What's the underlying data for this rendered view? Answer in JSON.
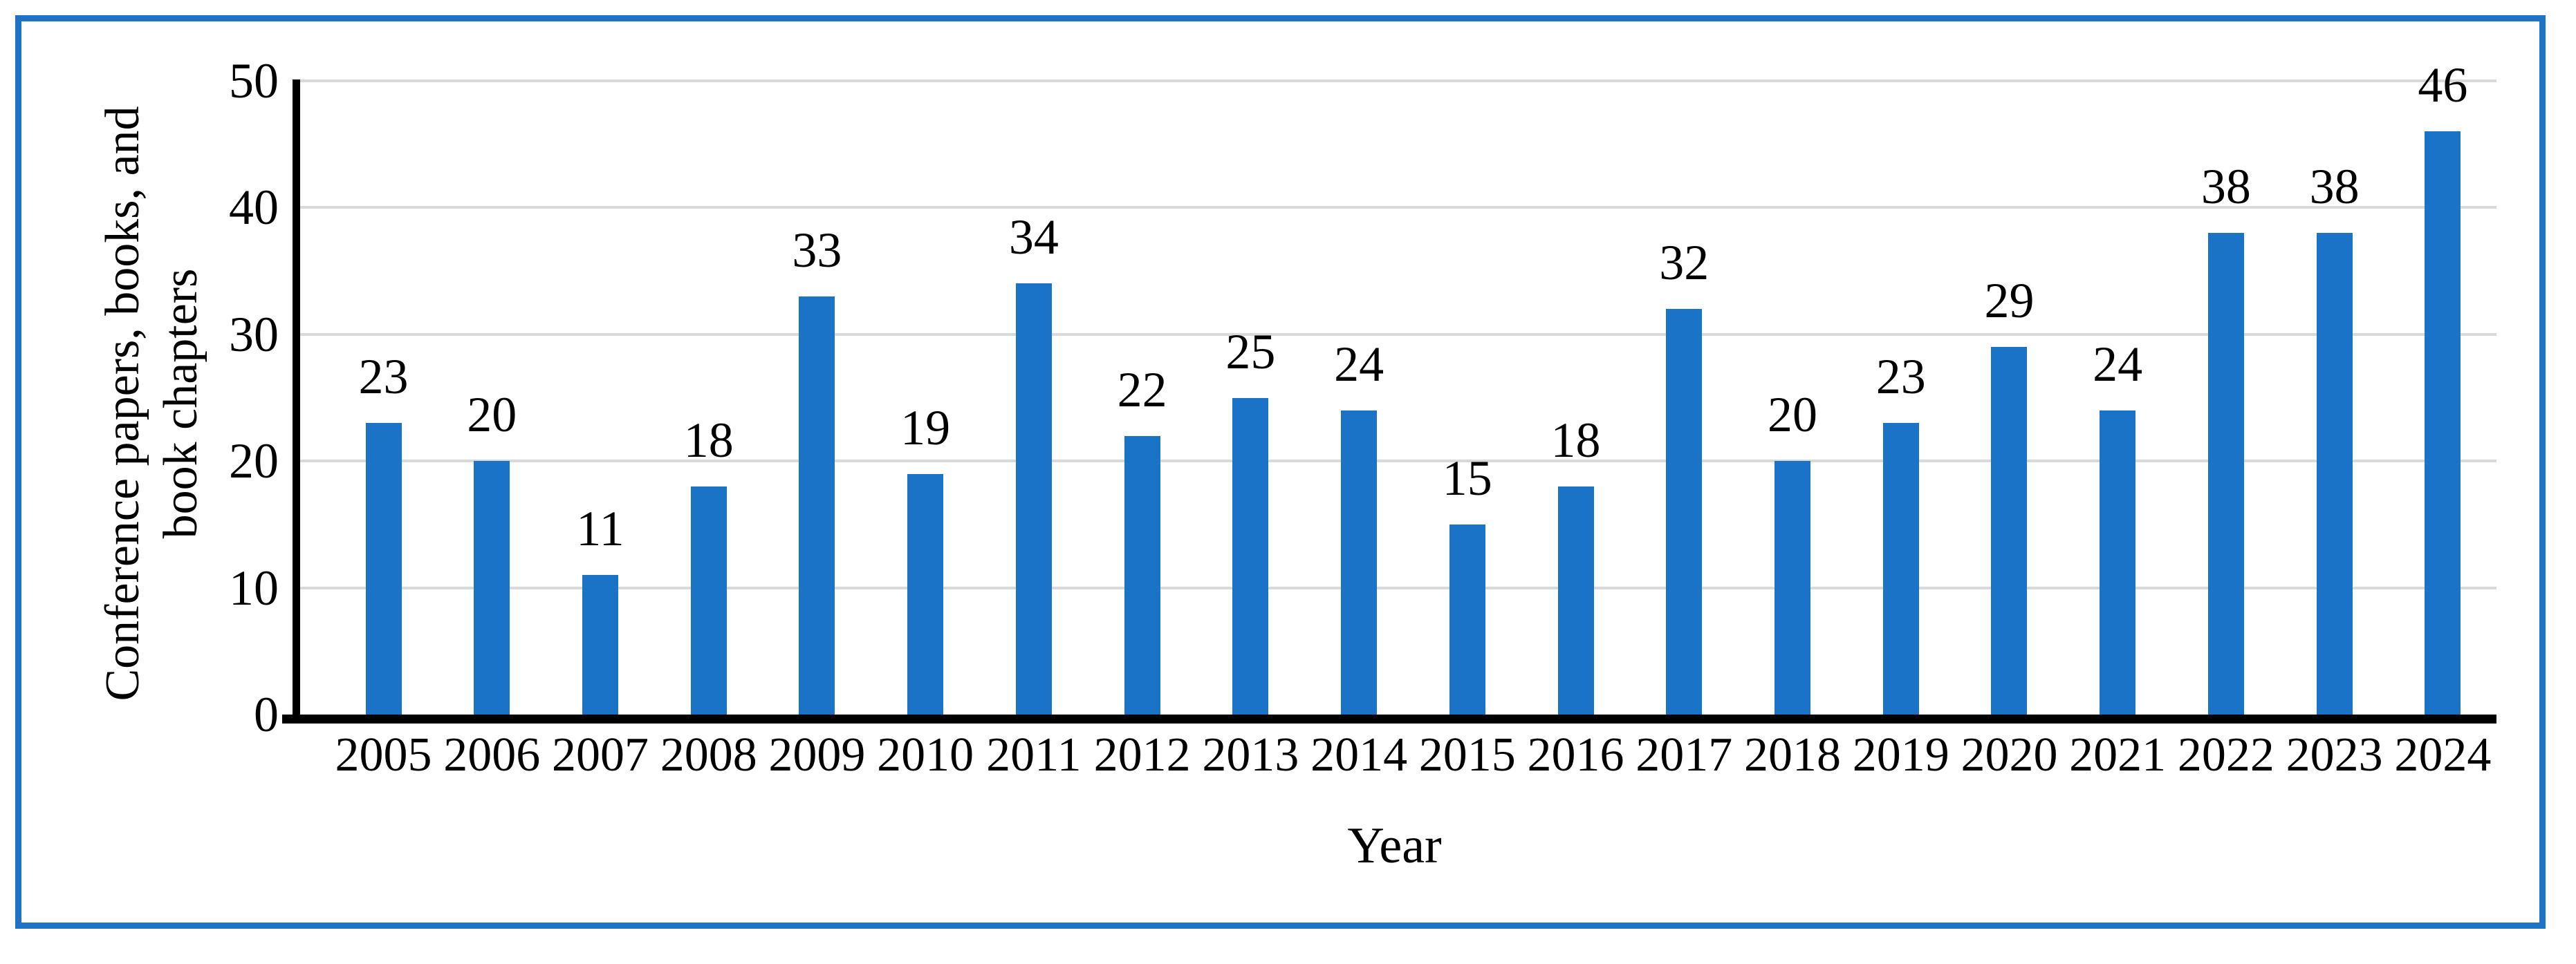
{
  "figure": {
    "background_color": "#FFFFFF",
    "border_color": "#1E73C6"
  },
  "chart_data": {
    "type": "bar",
    "title": "",
    "categories": [
      "2005",
      "2006",
      "2007",
      "2008",
      "2009",
      "2010",
      "2011",
      "2012",
      "2013",
      "2014",
      "2015",
      "2016",
      "2017",
      "2018",
      "2019",
      "2020",
      "2021",
      "2022",
      "2023",
      "2024"
    ],
    "values": [
      23,
      20,
      11,
      18,
      33,
      19,
      34,
      22,
      25,
      24,
      15,
      18,
      32,
      20,
      23,
      29,
      24,
      38,
      38,
      46
    ],
    "xlabel": "Year",
    "ylabel_line1": "Conference papers, books, and",
    "ylabel_line2": "book chapters",
    "ylim": [
      0,
      50
    ],
    "yticks": [
      0,
      10,
      20,
      30,
      40,
      50
    ],
    "grid": "horizontal",
    "legend": "none",
    "data_labels": true,
    "bar_color": "#1B73C8",
    "gridline_color": "#D9D9D9",
    "axis_color": "#000000",
    "label_color": "#000000"
  }
}
